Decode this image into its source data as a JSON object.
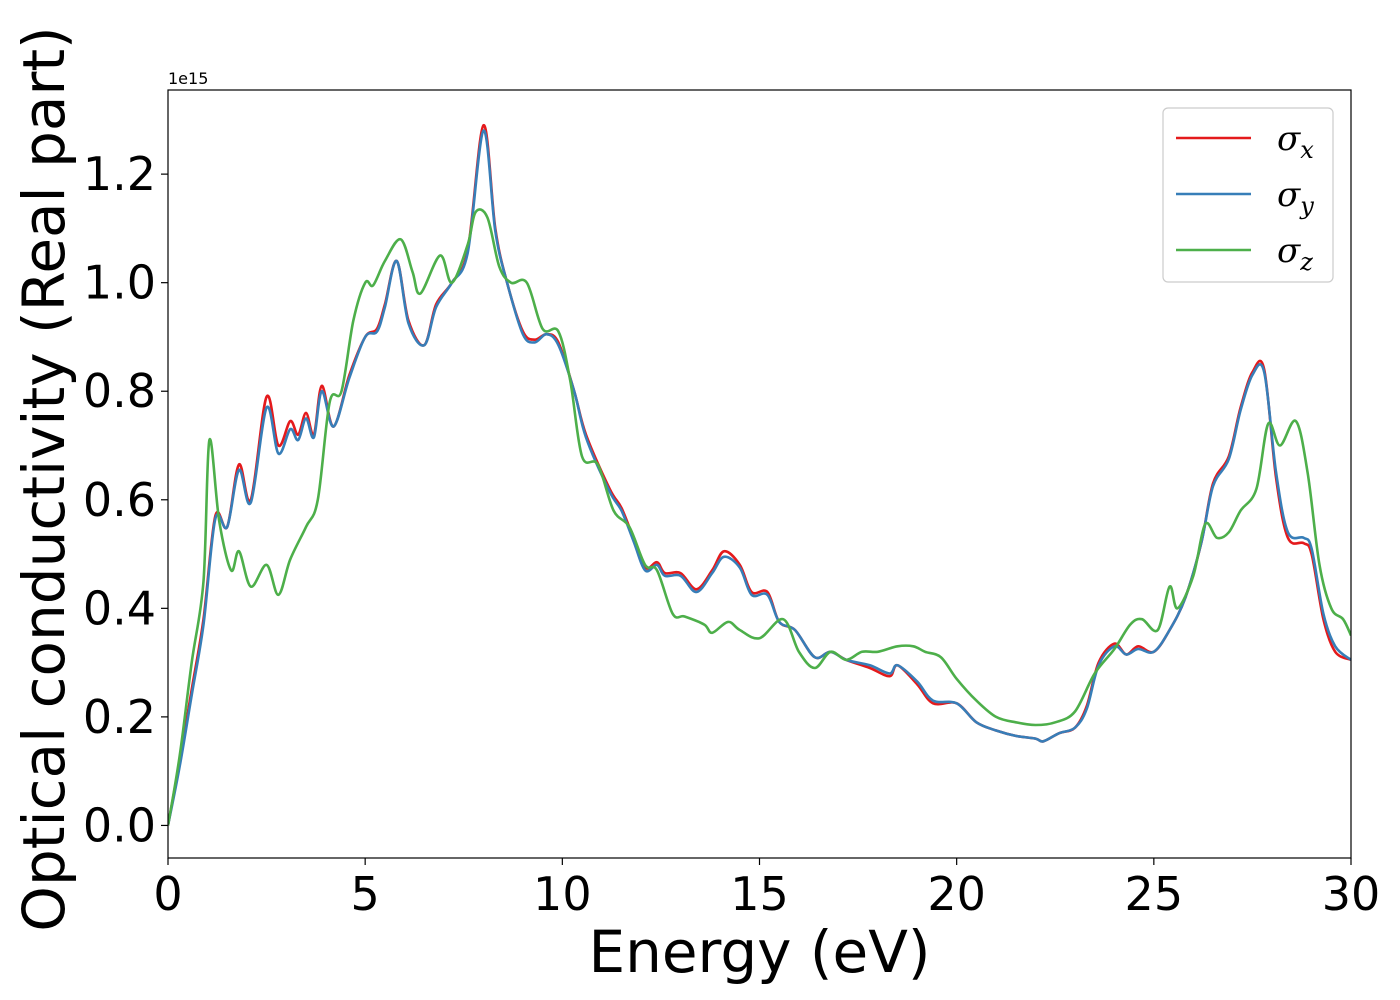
{
  "chart_data": {
    "type": "line",
    "xlabel": "Energy (eV)",
    "ylabel": "Optical conductivity (Real part)",
    "y_offset_label": "1e15",
    "xlim": [
      0,
      30
    ],
    "ylim": [
      -0.06,
      1.355
    ],
    "x_ticks": [
      0,
      5,
      10,
      15,
      20,
      25,
      30
    ],
    "y_ticks": [
      0.0,
      0.2,
      0.4,
      0.6,
      0.8,
      1.0,
      1.2
    ],
    "x_tick_labels": [
      "0",
      "5",
      "10",
      "15",
      "20",
      "25",
      "30"
    ],
    "y_tick_labels": [
      "0.0",
      "0.2",
      "0.4",
      "0.6",
      "0.8",
      "1.0",
      "1.2"
    ],
    "grid": false,
    "legend_position": "top-right",
    "series": [
      {
        "name": "σx",
        "name_base": "σ",
        "name_sub": "x",
        "color": "#e41a1c",
        "points": [
          [
            0,
            0
          ],
          [
            0.3,
            0.12
          ],
          [
            0.6,
            0.25
          ],
          [
            0.9,
            0.38
          ],
          [
            1.2,
            0.57
          ],
          [
            1.5,
            0.55
          ],
          [
            1.8,
            0.665
          ],
          [
            2.1,
            0.6
          ],
          [
            2.5,
            0.79
          ],
          [
            2.8,
            0.7
          ],
          [
            3.1,
            0.745
          ],
          [
            3.3,
            0.72
          ],
          [
            3.5,
            0.76
          ],
          [
            3.7,
            0.72
          ],
          [
            3.9,
            0.81
          ],
          [
            4.2,
            0.735
          ],
          [
            4.6,
            0.83
          ],
          [
            5.0,
            0.9
          ],
          [
            5.3,
            0.915
          ],
          [
            5.5,
            0.96
          ],
          [
            5.8,
            1.04
          ],
          [
            6.1,
            0.93
          ],
          [
            6.5,
            0.885
          ],
          [
            6.8,
            0.96
          ],
          [
            7.2,
            1.0
          ],
          [
            7.6,
            1.06
          ],
          [
            8.0,
            1.29
          ],
          [
            8.3,
            1.1
          ],
          [
            8.6,
            1.0
          ],
          [
            9.0,
            0.91
          ],
          [
            9.3,
            0.895
          ],
          [
            9.6,
            0.905
          ],
          [
            9.9,
            0.89
          ],
          [
            10.3,
            0.8
          ],
          [
            10.6,
            0.72
          ],
          [
            11.2,
            0.62
          ],
          [
            11.5,
            0.585
          ],
          [
            11.8,
            0.53
          ],
          [
            12.1,
            0.475
          ],
          [
            12.4,
            0.485
          ],
          [
            12.6,
            0.465
          ],
          [
            13.0,
            0.465
          ],
          [
            13.4,
            0.435
          ],
          [
            13.8,
            0.47
          ],
          [
            14.1,
            0.505
          ],
          [
            14.5,
            0.48
          ],
          [
            14.8,
            0.43
          ],
          [
            15.2,
            0.43
          ],
          [
            15.5,
            0.375
          ],
          [
            15.9,
            0.36
          ],
          [
            16.4,
            0.31
          ],
          [
            16.8,
            0.32
          ],
          [
            17.2,
            0.305
          ],
          [
            17.8,
            0.29
          ],
          [
            18.3,
            0.275
          ],
          [
            18.5,
            0.295
          ],
          [
            19.0,
            0.26
          ],
          [
            19.4,
            0.225
          ],
          [
            20.0,
            0.225
          ],
          [
            20.5,
            0.19
          ],
          [
            21.0,
            0.175
          ],
          [
            21.5,
            0.165
          ],
          [
            22.0,
            0.16
          ],
          [
            22.2,
            0.155
          ],
          [
            22.6,
            0.17
          ],
          [
            23.0,
            0.18
          ],
          [
            23.3,
            0.22
          ],
          [
            23.6,
            0.3
          ],
          [
            24.0,
            0.335
          ],
          [
            24.3,
            0.315
          ],
          [
            24.6,
            0.33
          ],
          [
            25.0,
            0.32
          ],
          [
            25.4,
            0.36
          ],
          [
            25.8,
            0.42
          ],
          [
            26.2,
            0.52
          ],
          [
            26.5,
            0.63
          ],
          [
            26.9,
            0.68
          ],
          [
            27.2,
            0.77
          ],
          [
            27.5,
            0.835
          ],
          [
            27.8,
            0.84
          ],
          [
            28.1,
            0.64
          ],
          [
            28.4,
            0.53
          ],
          [
            28.8,
            0.52
          ],
          [
            29.0,
            0.5
          ],
          [
            29.3,
            0.38
          ],
          [
            29.6,
            0.32
          ],
          [
            30.0,
            0.305
          ]
        ]
      },
      {
        "name": "σy",
        "name_base": "σ",
        "name_sub": "y",
        "color": "#377eb8",
        "points": [
          [
            0,
            0
          ],
          [
            0.3,
            0.11
          ],
          [
            0.6,
            0.24
          ],
          [
            0.9,
            0.37
          ],
          [
            1.2,
            0.565
          ],
          [
            1.5,
            0.55
          ],
          [
            1.8,
            0.655
          ],
          [
            2.1,
            0.595
          ],
          [
            2.5,
            0.77
          ],
          [
            2.8,
            0.685
          ],
          [
            3.1,
            0.73
          ],
          [
            3.3,
            0.71
          ],
          [
            3.5,
            0.75
          ],
          [
            3.7,
            0.715
          ],
          [
            3.9,
            0.8
          ],
          [
            4.2,
            0.735
          ],
          [
            4.6,
            0.825
          ],
          [
            5.0,
            0.9
          ],
          [
            5.3,
            0.91
          ],
          [
            5.5,
            0.955
          ],
          [
            5.8,
            1.04
          ],
          [
            6.1,
            0.925
          ],
          [
            6.5,
            0.885
          ],
          [
            6.8,
            0.955
          ],
          [
            7.2,
            1.0
          ],
          [
            7.6,
            1.055
          ],
          [
            8.0,
            1.28
          ],
          [
            8.3,
            1.095
          ],
          [
            8.6,
            1.0
          ],
          [
            9.0,
            0.905
          ],
          [
            9.3,
            0.89
          ],
          [
            9.6,
            0.905
          ],
          [
            9.9,
            0.885
          ],
          [
            10.3,
            0.8
          ],
          [
            10.6,
            0.715
          ],
          [
            11.2,
            0.615
          ],
          [
            11.5,
            0.58
          ],
          [
            11.8,
            0.525
          ],
          [
            12.1,
            0.47
          ],
          [
            12.4,
            0.48
          ],
          [
            12.6,
            0.46
          ],
          [
            13.0,
            0.46
          ],
          [
            13.4,
            0.43
          ],
          [
            13.8,
            0.465
          ],
          [
            14.1,
            0.495
          ],
          [
            14.5,
            0.475
          ],
          [
            14.8,
            0.425
          ],
          [
            15.2,
            0.425
          ],
          [
            15.5,
            0.375
          ],
          [
            15.9,
            0.36
          ],
          [
            16.4,
            0.31
          ],
          [
            16.8,
            0.32
          ],
          [
            17.2,
            0.305
          ],
          [
            17.8,
            0.295
          ],
          [
            18.3,
            0.28
          ],
          [
            18.5,
            0.295
          ],
          [
            19.0,
            0.265
          ],
          [
            19.4,
            0.23
          ],
          [
            20.0,
            0.225
          ],
          [
            20.5,
            0.19
          ],
          [
            21.0,
            0.175
          ],
          [
            21.5,
            0.165
          ],
          [
            22.0,
            0.16
          ],
          [
            22.2,
            0.155
          ],
          [
            22.6,
            0.17
          ],
          [
            23.0,
            0.18
          ],
          [
            23.3,
            0.215
          ],
          [
            23.6,
            0.295
          ],
          [
            24.0,
            0.33
          ],
          [
            24.3,
            0.315
          ],
          [
            24.6,
            0.325
          ],
          [
            25.0,
            0.32
          ],
          [
            25.4,
            0.36
          ],
          [
            25.8,
            0.42
          ],
          [
            26.2,
            0.52
          ],
          [
            26.5,
            0.625
          ],
          [
            26.9,
            0.675
          ],
          [
            27.2,
            0.765
          ],
          [
            27.5,
            0.83
          ],
          [
            27.8,
            0.835
          ],
          [
            28.1,
            0.65
          ],
          [
            28.4,
            0.54
          ],
          [
            28.8,
            0.53
          ],
          [
            29.0,
            0.51
          ],
          [
            29.3,
            0.39
          ],
          [
            29.6,
            0.33
          ],
          [
            30.0,
            0.305
          ]
        ]
      },
      {
        "name": "σz",
        "name_base": "σ",
        "name_sub": "z",
        "color": "#4daf4a",
        "points": [
          [
            0,
            0
          ],
          [
            0.3,
            0.13
          ],
          [
            0.6,
            0.3
          ],
          [
            0.9,
            0.45
          ],
          [
            1.05,
            0.71
          ],
          [
            1.3,
            0.56
          ],
          [
            1.6,
            0.47
          ],
          [
            1.8,
            0.505
          ],
          [
            2.1,
            0.44
          ],
          [
            2.5,
            0.48
          ],
          [
            2.8,
            0.425
          ],
          [
            3.1,
            0.49
          ],
          [
            3.5,
            0.55
          ],
          [
            3.8,
            0.6
          ],
          [
            4.1,
            0.78
          ],
          [
            4.4,
            0.8
          ],
          [
            4.7,
            0.93
          ],
          [
            5.0,
            1.0
          ],
          [
            5.2,
            0.995
          ],
          [
            5.5,
            1.04
          ],
          [
            5.9,
            1.08
          ],
          [
            6.2,
            1.02
          ],
          [
            6.4,
            0.98
          ],
          [
            6.9,
            1.05
          ],
          [
            7.2,
            1.0
          ],
          [
            7.6,
            1.07
          ],
          [
            7.8,
            1.13
          ],
          [
            8.1,
            1.12
          ],
          [
            8.4,
            1.03
          ],
          [
            8.7,
            1.0
          ],
          [
            9.1,
            1.0
          ],
          [
            9.5,
            0.915
          ],
          [
            9.9,
            0.91
          ],
          [
            10.2,
            0.82
          ],
          [
            10.5,
            0.68
          ],
          [
            10.9,
            0.665
          ],
          [
            11.3,
            0.58
          ],
          [
            11.7,
            0.55
          ],
          [
            12.1,
            0.48
          ],
          [
            12.4,
            0.47
          ],
          [
            12.8,
            0.39
          ],
          [
            13.1,
            0.385
          ],
          [
            13.6,
            0.37
          ],
          [
            13.8,
            0.355
          ],
          [
            14.2,
            0.375
          ],
          [
            14.5,
            0.36
          ],
          [
            15.0,
            0.345
          ],
          [
            15.6,
            0.38
          ],
          [
            16.0,
            0.32
          ],
          [
            16.4,
            0.29
          ],
          [
            16.8,
            0.32
          ],
          [
            17.2,
            0.305
          ],
          [
            17.6,
            0.32
          ],
          [
            18.0,
            0.32
          ],
          [
            18.5,
            0.33
          ],
          [
            18.9,
            0.33
          ],
          [
            19.2,
            0.32
          ],
          [
            19.6,
            0.31
          ],
          [
            20.0,
            0.27
          ],
          [
            20.5,
            0.23
          ],
          [
            21.0,
            0.2
          ],
          [
            21.5,
            0.19
          ],
          [
            22.0,
            0.185
          ],
          [
            22.5,
            0.19
          ],
          [
            23.0,
            0.21
          ],
          [
            23.5,
            0.28
          ],
          [
            24.0,
            0.325
          ],
          [
            24.4,
            0.37
          ],
          [
            24.7,
            0.38
          ],
          [
            25.1,
            0.36
          ],
          [
            25.4,
            0.44
          ],
          [
            25.6,
            0.4
          ],
          [
            26.0,
            0.46
          ],
          [
            26.3,
            0.555
          ],
          [
            26.6,
            0.53
          ],
          [
            26.9,
            0.54
          ],
          [
            27.2,
            0.58
          ],
          [
            27.6,
            0.62
          ],
          [
            27.9,
            0.74
          ],
          [
            28.2,
            0.7
          ],
          [
            28.6,
            0.745
          ],
          [
            28.9,
            0.65
          ],
          [
            29.2,
            0.48
          ],
          [
            29.5,
            0.4
          ],
          [
            29.8,
            0.38
          ],
          [
            30.0,
            0.35
          ]
        ]
      }
    ]
  }
}
